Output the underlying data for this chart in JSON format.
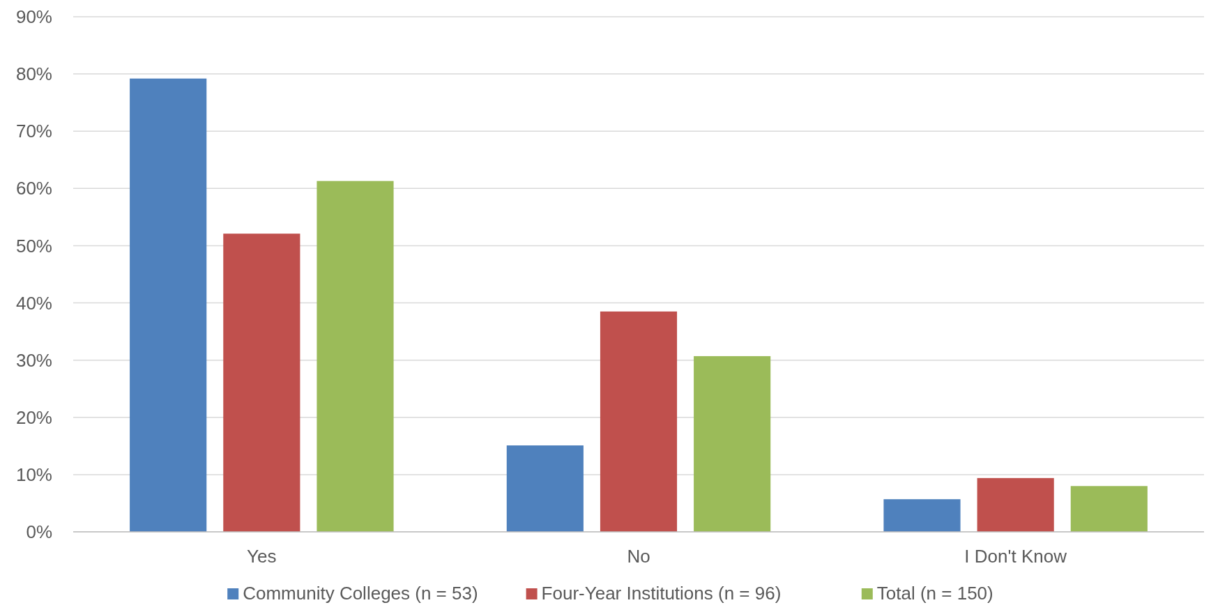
{
  "chart_data": {
    "type": "bar",
    "categories": [
      "Yes",
      "No",
      "I Don't Know"
    ],
    "series": [
      {
        "name": "Community Colleges (n = 53)",
        "color": "#4f81bd",
        "values": [
          79.2,
          15.1,
          5.7
        ]
      },
      {
        "name": "Four-Year Institutions (n = 96)",
        "color": "#c0504d",
        "values": [
          52.1,
          38.5,
          9.4
        ]
      },
      {
        "name": "Total (n = 150)",
        "color": "#9bbb59",
        "values": [
          61.3,
          30.7,
          8.0
        ]
      }
    ],
    "ylim": [
      0,
      90
    ],
    "yticks": [
      {
        "value": 0,
        "label": "0%"
      },
      {
        "value": 10,
        "label": "10%"
      },
      {
        "value": 20,
        "label": "20%"
      },
      {
        "value": 30,
        "label": "30%"
      },
      {
        "value": 40,
        "label": "40%"
      },
      {
        "value": 50,
        "label": "50%"
      },
      {
        "value": 60,
        "label": "60%"
      },
      {
        "value": 70,
        "label": "70%"
      },
      {
        "value": 80,
        "label": "80%"
      },
      {
        "value": 90,
        "label": "90%"
      }
    ],
    "grid": "y",
    "legend": "bottom"
  }
}
